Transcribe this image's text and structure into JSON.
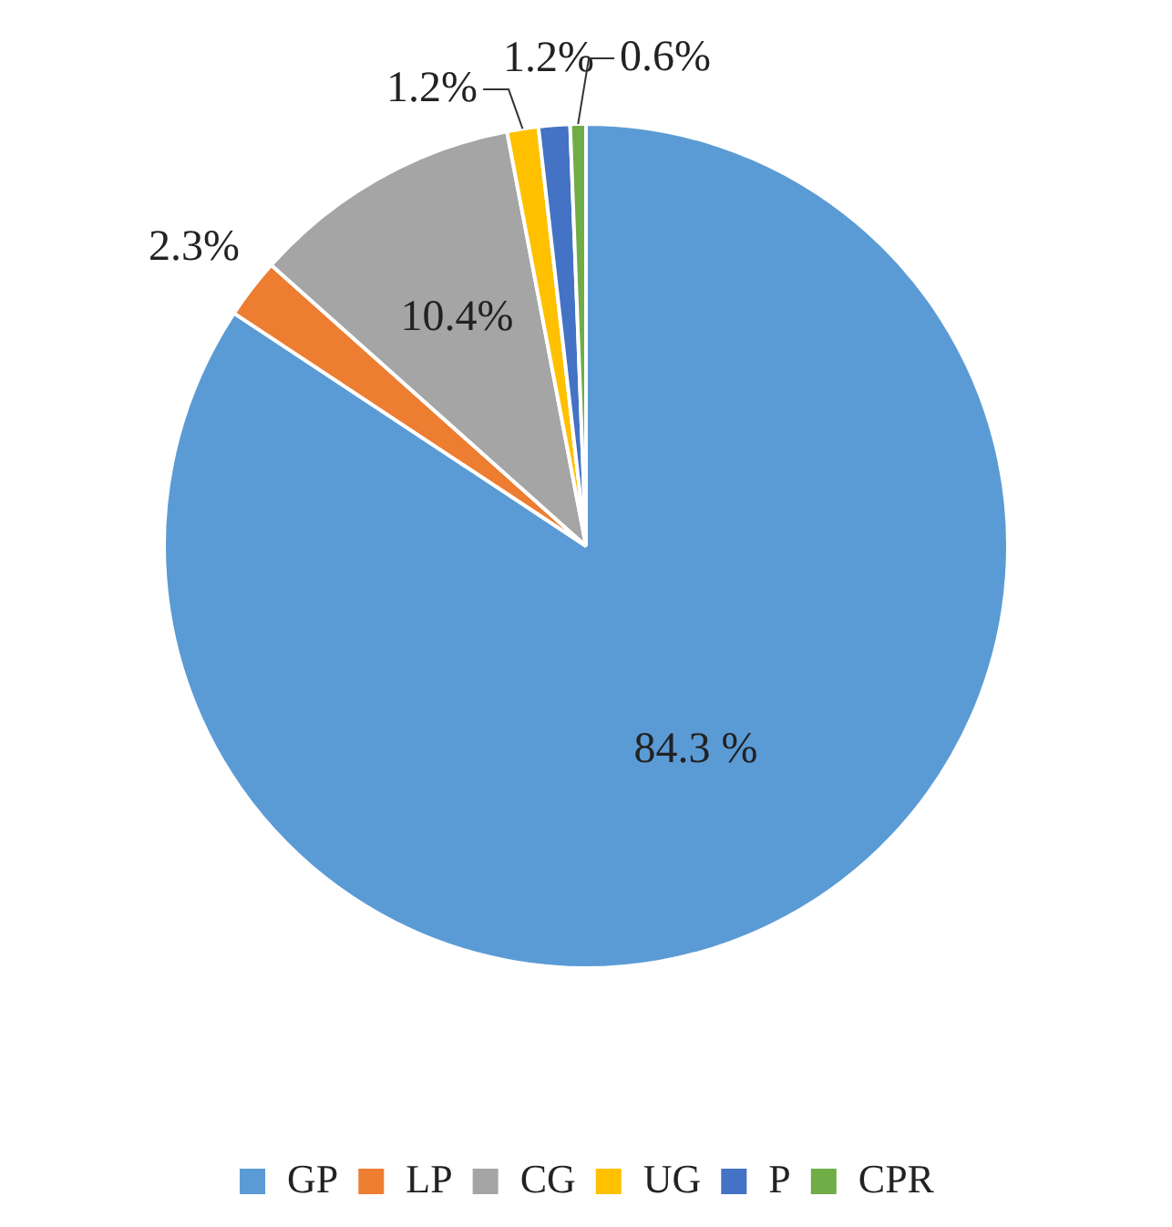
{
  "chart_data": {
    "type": "pie",
    "categories": [
      "GP",
      "LP",
      "CG",
      "UG",
      "P",
      "CPR"
    ],
    "values": [
      84.3,
      2.3,
      10.4,
      1.2,
      1.2,
      0.6
    ],
    "colors": [
      "#5b9bd5",
      "#ed7d31",
      "#a5a5a5",
      "#ffc000",
      "#4472c4",
      "#70ad47"
    ],
    "value_labels": [
      "84.3 %",
      "2.3%",
      "10.4%",
      "1.2%",
      "1.2%",
      "0.6%"
    ],
    "legend": "bottom"
  }
}
